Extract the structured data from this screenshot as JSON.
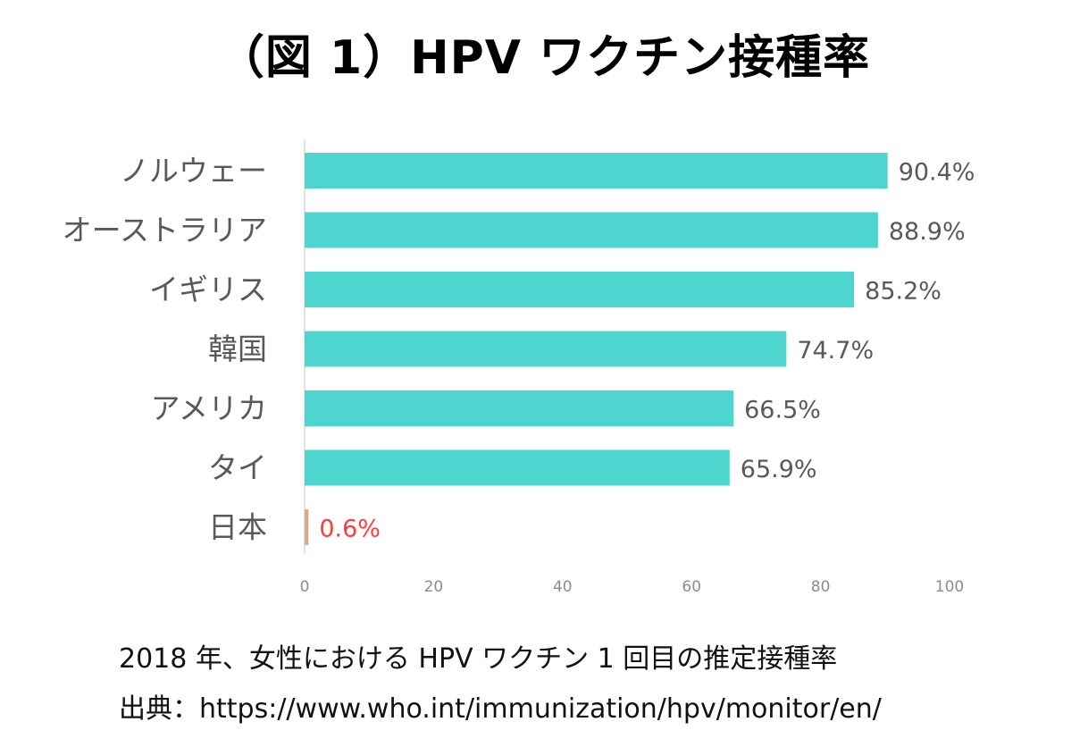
{
  "title": "（図 1）HPV ワクチン接種率",
  "chart_data": {
    "type": "bar",
    "orientation": "horizontal",
    "categories": [
      "ノルウェー",
      "オーストラリア",
      "イギリス",
      "韓国",
      "アメリカ",
      "タイ",
      "日本"
    ],
    "values": [
      90.4,
      88.9,
      85.2,
      74.7,
      66.5,
      65.9,
      0.6
    ],
    "value_labels": [
      "90.4%",
      "88.9%",
      "85.2%",
      "74.7%",
      "66.5%",
      "65.9%",
      "0.6%"
    ],
    "unit": "%",
    "xlim": [
      0,
      100
    ],
    "xticks": [
      0,
      20,
      40,
      60,
      80,
      100
    ],
    "bar_color": "#4fd5d0",
    "highlight_category": "日本",
    "highlight_bar_color": "#d9a98c",
    "highlight_label_color": "#ff3b3b",
    "label_color": "#595959",
    "axis_color": "#d9d9d9",
    "grid": false
  },
  "captions": {
    "line1": "2018 年、女性における HPV ワクチン 1 回目の推定接種率",
    "line2": "出典：https://www.who.int/immunization/hpv/monitor/en/"
  }
}
